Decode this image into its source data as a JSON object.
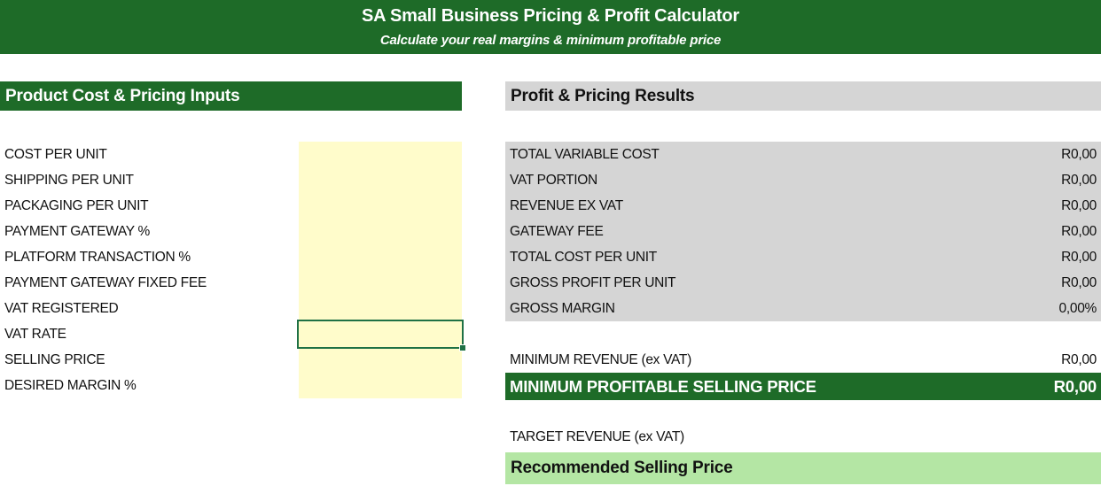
{
  "colors": {
    "dark_green": "#1E6B28",
    "header_gray": "#D5D5D5",
    "input_yellow": "#FFFCCB",
    "highlight_light_green": "#B4E6A4",
    "selection_border_green": "#1F7145"
  },
  "banner": {
    "title": "SA Small Business Pricing & Profit Calculator",
    "subtitle": "Calculate your real margins & minimum profitable price"
  },
  "inputs": {
    "header": "Product Cost & Pricing Inputs",
    "rows": [
      "COST PER UNIT",
      "SHIPPING PER UNIT",
      "PACKAGING PER UNIT",
      "PAYMENT GATEWAY %",
      "PLATFORM TRANSACTION %",
      "PAYMENT GATEWAY FIXED FEE",
      "VAT REGISTERED",
      "VAT RATE",
      "SELLING PRICE",
      "DESIRED MARGIN %"
    ],
    "cell_values": [
      "",
      "",
      "",
      "",
      "",
      "",
      "",
      "",
      "",
      ""
    ],
    "selected_row": "VAT RATE"
  },
  "results": {
    "header": "Profit & Pricing Results",
    "rows": [
      {
        "label": "TOTAL VARIABLE COST",
        "value": "R0,00"
      },
      {
        "label": "VAT PORTION",
        "value": "R0,00"
      },
      {
        "label": "REVENUE EX VAT",
        "value": "R0,00"
      },
      {
        "label": "GATEWAY FEE",
        "value": "R0,00"
      },
      {
        "label": "TOTAL COST PER UNIT",
        "value": "R0,00"
      },
      {
        "label": "GROSS PROFIT PER UNIT",
        "value": "R0,00"
      },
      {
        "label": "GROSS MARGIN",
        "value": "0,00%"
      }
    ],
    "minimum_revenue": {
      "label": "MINIMUM REVENUE (ex VAT)",
      "value": "R0,00"
    },
    "minimum_price": {
      "label": "MINIMUM PROFITABLE SELLING PRICE",
      "value": "R0,00"
    },
    "target_revenue": {
      "label": "TARGET REVENUE (ex VAT)",
      "value": ""
    },
    "recommended": {
      "label": "Recommended Selling Price",
      "value": ""
    }
  }
}
